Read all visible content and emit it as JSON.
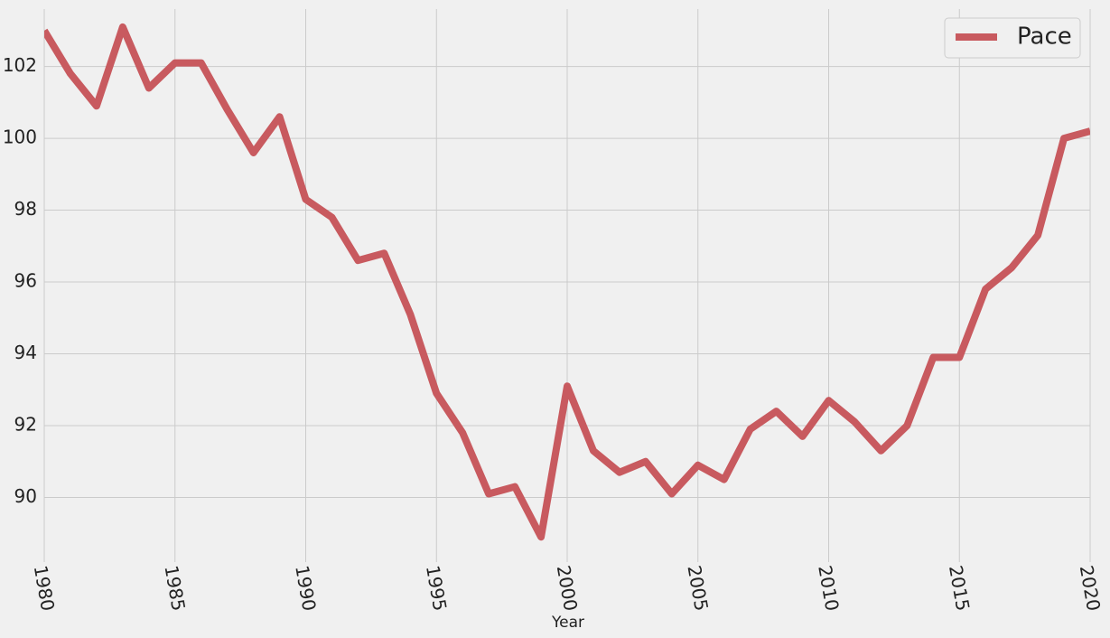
{
  "chart_data": {
    "type": "line",
    "x": [
      1980,
      1981,
      1982,
      1983,
      1984,
      1985,
      1986,
      1987,
      1988,
      1989,
      1990,
      1991,
      1992,
      1993,
      1994,
      1995,
      1996,
      1997,
      1998,
      1999,
      2000,
      2001,
      2002,
      2003,
      2004,
      2005,
      2006,
      2007,
      2008,
      2009,
      2010,
      2011,
      2012,
      2013,
      2014,
      2015,
      2016,
      2017,
      2018,
      2019,
      2020
    ],
    "series": [
      {
        "name": "Pace",
        "color": "#c85a5f",
        "values": [
          103.0,
          101.8,
          100.9,
          103.1,
          101.4,
          102.1,
          102.1,
          100.8,
          99.6,
          100.6,
          98.3,
          97.8,
          96.6,
          96.8,
          95.1,
          92.9,
          91.8,
          90.1,
          90.3,
          88.9,
          93.1,
          91.3,
          90.7,
          91.0,
          90.1,
          90.9,
          90.5,
          91.9,
          92.4,
          91.7,
          92.7,
          92.1,
          91.3,
          92.0,
          93.9,
          93.9,
          95.8,
          96.4,
          97.3,
          100.0,
          100.2
        ]
      }
    ],
    "x_label": "Year",
    "xlim": [
      1980,
      2020
    ],
    "xticks": [
      1980,
      1985,
      1990,
      1995,
      2000,
      2005,
      2010,
      2015,
      2020
    ],
    "ylim": [
      88.2,
      103.6
    ],
    "yticks": [
      90,
      92,
      94,
      96,
      98,
      100,
      102
    ],
    "grid": true,
    "legend": "upper right"
  }
}
